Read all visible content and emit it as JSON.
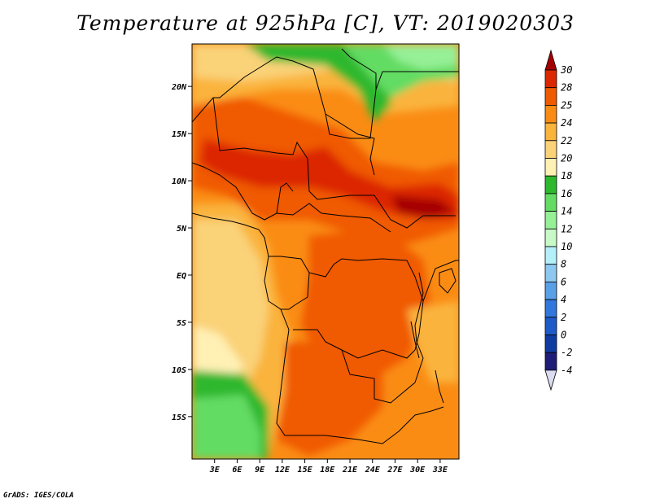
{
  "title": "Temperature at 925hPa [C], VT: 2019020303",
  "footer": "GrADS: IGES/COLA",
  "map": {
    "lat_range": [
      -19.5,
      24.5
    ],
    "lon_range": [
      0,
      35.5
    ],
    "lat_labels": [
      {
        "value": 20,
        "label": "20N"
      },
      {
        "value": 15,
        "label": "15N"
      },
      {
        "value": 10,
        "label": "10N"
      },
      {
        "value": 5,
        "label": "5N"
      },
      {
        "value": 0,
        "label": "EQ"
      },
      {
        "value": -5,
        "label": "5S"
      },
      {
        "value": -10,
        "label": "10S"
      },
      {
        "value": -15,
        "label": "15S"
      }
    ],
    "lon_labels": [
      {
        "value": 3,
        "label": "3E"
      },
      {
        "value": 6,
        "label": "6E"
      },
      {
        "value": 9,
        "label": "9E"
      },
      {
        "value": 12,
        "label": "12E"
      },
      {
        "value": 15,
        "label": "15E"
      },
      {
        "value": 18,
        "label": "18E"
      },
      {
        "value": 21,
        "label": "21E"
      },
      {
        "value": 24,
        "label": "24E"
      },
      {
        "value": 27,
        "label": "27E"
      },
      {
        "value": 30,
        "label": "30E"
      },
      {
        "value": 33,
        "label": "33E"
      }
    ]
  },
  "colorbar": {
    "labels": [
      "30",
      "28",
      "25",
      "24",
      "22",
      "20",
      "18",
      "16",
      "14",
      "12",
      "10",
      "8",
      "6",
      "4",
      "2",
      "0",
      "-2",
      "-4"
    ],
    "colors": [
      "#a50000",
      "#dc2800",
      "#f05a00",
      "#fa8c14",
      "#fab43c",
      "#fad278",
      "#fff0b4",
      "#2db82d",
      "#64dc64",
      "#96f096",
      "#c8fac8",
      "#b4f0fa",
      "#8cc8f0",
      "#5aa0e6",
      "#3278dc",
      "#1e5ac8",
      "#0f3ca0",
      "#1e1e78",
      "#dcdcf0"
    ]
  }
}
